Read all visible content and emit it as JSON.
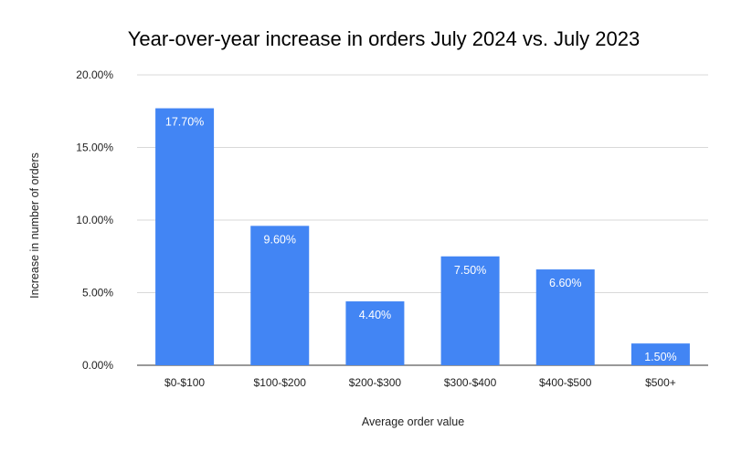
{
  "chart_data": {
    "type": "bar",
    "title": "Year-over-year increase in orders July 2024 vs. July 2023",
    "xlabel": "Average order value",
    "ylabel": "Increase in number of orders",
    "categories": [
      "$0-$100",
      "$100-$200",
      "$200-$300",
      "$300-$400",
      "$400-$500",
      "$500+"
    ],
    "values": [
      17.7,
      9.6,
      4.4,
      7.5,
      6.6,
      1.5
    ],
    "data_labels": [
      "17.70%",
      "9.60%",
      "4.40%",
      "7.50%",
      "6.60%",
      "1.50%"
    ],
    "ylim": [
      0,
      20
    ],
    "yticks": [
      0,
      5,
      10,
      15,
      20
    ],
    "ytick_labels": [
      "0.00%",
      "5.00%",
      "10.00%",
      "15.00%",
      "20.00%"
    ],
    "grid": true,
    "legend": "none",
    "bar_color": "#4285f4"
  }
}
